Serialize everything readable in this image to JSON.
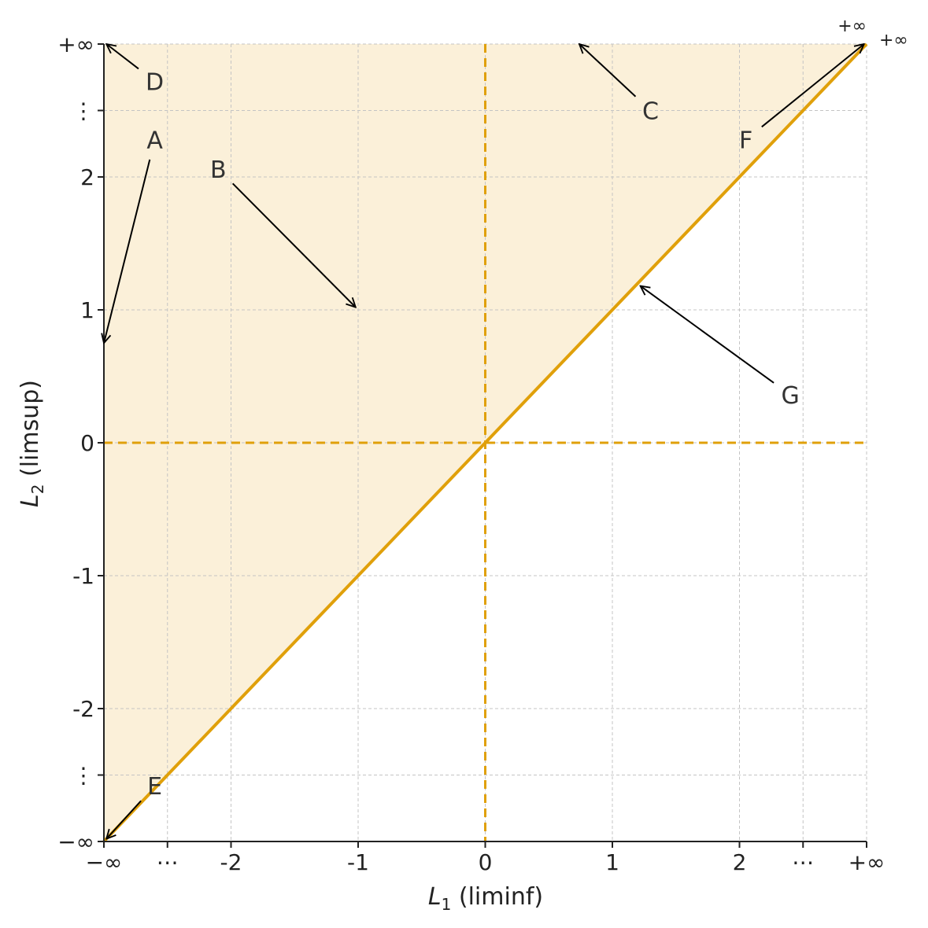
{
  "chart_data": {
    "type": "line",
    "title": "",
    "xlabel": {
      "var": "L",
      "sub": "1",
      "text": " (liminf)"
    },
    "ylabel": {
      "var": "L",
      "sub": "2",
      "text": " (limsup)"
    },
    "x_ticks": [
      {
        "pos": -3,
        "label": "−∞"
      },
      {
        "pos": -2.5,
        "label": "⋯"
      },
      {
        "pos": -2,
        "label": "-2"
      },
      {
        "pos": -1,
        "label": "-1"
      },
      {
        "pos": 0,
        "label": "0"
      },
      {
        "pos": 1,
        "label": "1"
      },
      {
        "pos": 2,
        "label": "2"
      },
      {
        "pos": 2.5,
        "label": "⋯"
      },
      {
        "pos": 3,
        "label": "+∞"
      }
    ],
    "y_ticks": [
      {
        "pos": -3,
        "label": "−∞"
      },
      {
        "pos": -2.5,
        "label": "⋮"
      },
      {
        "pos": -2,
        "label": "-2"
      },
      {
        "pos": -1,
        "label": "-1"
      },
      {
        "pos": 0,
        "label": "0"
      },
      {
        "pos": 1,
        "label": "1"
      },
      {
        "pos": 2,
        "label": "2"
      },
      {
        "pos": 2.5,
        "label": "⋮"
      },
      {
        "pos": 3,
        "label": "+∞"
      }
    ],
    "xlim": [
      -3,
      3
    ],
    "ylim": [
      -3,
      3
    ],
    "grid": true,
    "shaded_region": {
      "description_points": [
        [
          -3,
          -3
        ],
        [
          3,
          3
        ],
        [
          -3,
          3
        ]
      ],
      "color": "#fbf0d9"
    },
    "series": [
      {
        "x": [
          -3,
          3
        ],
        "y": [
          -3,
          3
        ],
        "style": "solid",
        "color": "#e0a00a"
      }
    ],
    "reference_lines": [
      {
        "orientation": "vertical",
        "value": 0,
        "style": "dashed",
        "color": "#e0a00a"
      },
      {
        "orientation": "horizontal",
        "value": 0,
        "style": "dashed",
        "color": "#e0a00a"
      }
    ],
    "corner_labels": [
      {
        "text": "+∞",
        "x": 3,
        "y": 3
      },
      {
        "text": "+∞",
        "x": 3,
        "y": 3
      }
    ],
    "annotations": [
      {
        "label": "D",
        "text_at": [
          -2.6,
          2.72
        ],
        "arrow_to": [
          -2.98,
          3
        ]
      },
      {
        "label": "A",
        "text_at": [
          -2.6,
          2.28
        ],
        "arrow_to": [
          -3,
          0.75
        ]
      },
      {
        "label": "B",
        "text_at": [
          -2.1,
          2.06
        ],
        "arrow_to": [
          -1.02,
          1.02
        ]
      },
      {
        "label": "C",
        "text_at": [
          1.3,
          2.5
        ],
        "arrow_to": [
          0.74,
          3
        ]
      },
      {
        "label": "F",
        "text_at": [
          2.05,
          2.28
        ],
        "arrow_to": [
          2.98,
          3
        ]
      },
      {
        "label": "G",
        "text_at": [
          2.4,
          0.36
        ],
        "arrow_to": [
          1.22,
          1.18
        ]
      },
      {
        "label": "E",
        "text_at": [
          -2.6,
          -2.58
        ],
        "arrow_to": [
          -2.98,
          -2.98
        ]
      }
    ]
  }
}
